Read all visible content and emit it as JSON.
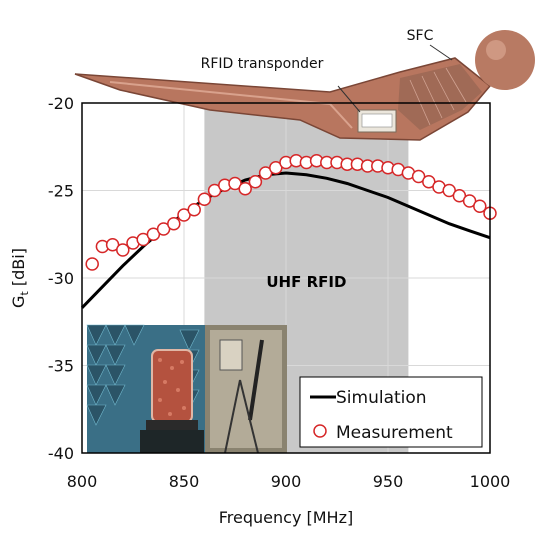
{
  "chart_data": {
    "type": "line",
    "xlabel": "Frequency [MHz]",
    "ylabel": "G",
    "ylabel_sub": "t",
    "ylabel_unit": " [dBi]",
    "xlim": [
      800,
      1000
    ],
    "ylim": [
      -40,
      -20
    ],
    "xticks": [
      800,
      850,
      900,
      950,
      1000
    ],
    "yticks": [
      -20,
      -25,
      -30,
      -35,
      -40
    ],
    "grid": true,
    "legend_position": "bottom-right",
    "band": {
      "label": "UHF RFID",
      "x": [
        860,
        960
      ],
      "color": "#c8c8c8"
    },
    "annotations": {
      "transponder": "RFID transponder",
      "sfc": "SFC"
    },
    "series": [
      {
        "name": "Simulation",
        "style": "line",
        "color": "#000000",
        "x": [
          800,
          810,
          820,
          830,
          840,
          850,
          860,
          870,
          880,
          890,
          900,
          910,
          920,
          930,
          940,
          950,
          960,
          970,
          980,
          990,
          1000
        ],
        "y": [
          -31.7,
          -30.5,
          -29.3,
          -28.2,
          -27.2,
          -26.3,
          -25.5,
          -24.9,
          -24.4,
          -24.1,
          -24.0,
          -24.1,
          -24.3,
          -24.6,
          -25.0,
          -25.4,
          -25.9,
          -26.4,
          -26.9,
          -27.3,
          -27.7
        ]
      },
      {
        "name": "Measurement",
        "style": "marker",
        "color": "#d62728",
        "x": [
          805,
          810,
          815,
          820,
          825,
          830,
          835,
          840,
          845,
          850,
          855,
          860,
          865,
          870,
          875,
          880,
          885,
          890,
          895,
          900,
          905,
          910,
          915,
          920,
          925,
          930,
          935,
          940,
          945,
          950,
          955,
          960,
          965,
          970,
          975,
          980,
          985,
          990,
          995,
          1000
        ],
        "y": [
          -29.2,
          -28.2,
          -28.1,
          -28.4,
          -28.0,
          -27.8,
          -27.5,
          -27.2,
          -26.9,
          -26.4,
          -26.1,
          -25.5,
          -25.0,
          -24.7,
          -24.6,
          -24.9,
          -24.5,
          -24.0,
          -23.7,
          -23.4,
          -23.3,
          -23.4,
          -23.3,
          -23.4,
          -23.4,
          -23.5,
          -23.5,
          -23.6,
          -23.6,
          -23.7,
          -23.8,
          -24.0,
          -24.2,
          -24.5,
          -24.8,
          -25.0,
          -25.3,
          -25.6,
          -25.9,
          -26.3
        ]
      }
    ]
  }
}
